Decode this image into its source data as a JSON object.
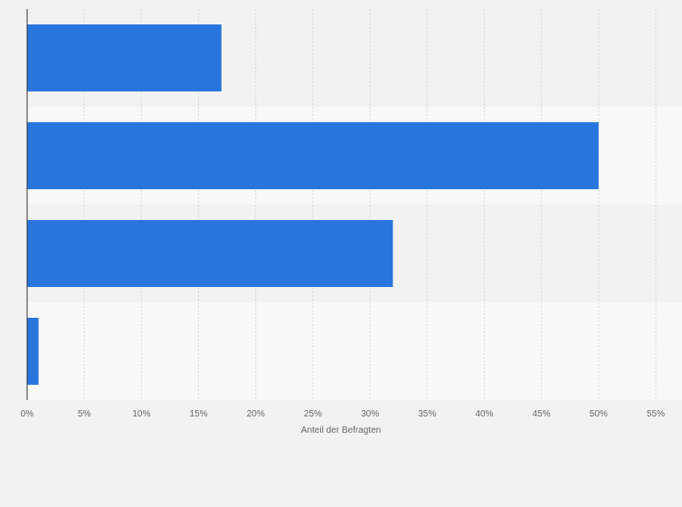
{
  "chart_data": {
    "type": "bar",
    "orientation": "horizontal",
    "categories": [
      "",
      "",
      "",
      ""
    ],
    "values": [
      17,
      50,
      32,
      1
    ],
    "xlabel": "Anteil der Befragten",
    "ylabel": "",
    "xlim": [
      0,
      55
    ],
    "x_ticks": [
      0,
      5,
      10,
      15,
      20,
      25,
      30,
      35,
      40,
      45,
      50,
      55
    ],
    "x_tick_labels": [
      "0%",
      "5%",
      "10%",
      "15%",
      "20%",
      "25%",
      "30%",
      "35%",
      "40%",
      "45%",
      "50%",
      "55%"
    ],
    "grid": true,
    "legend": "none",
    "colors": {
      "bar": "#2876dd",
      "band_dark": "#f2f2f2",
      "band_light": "#f8f8f8",
      "grid": "#d8d8d8",
      "axis": "#333333"
    }
  }
}
